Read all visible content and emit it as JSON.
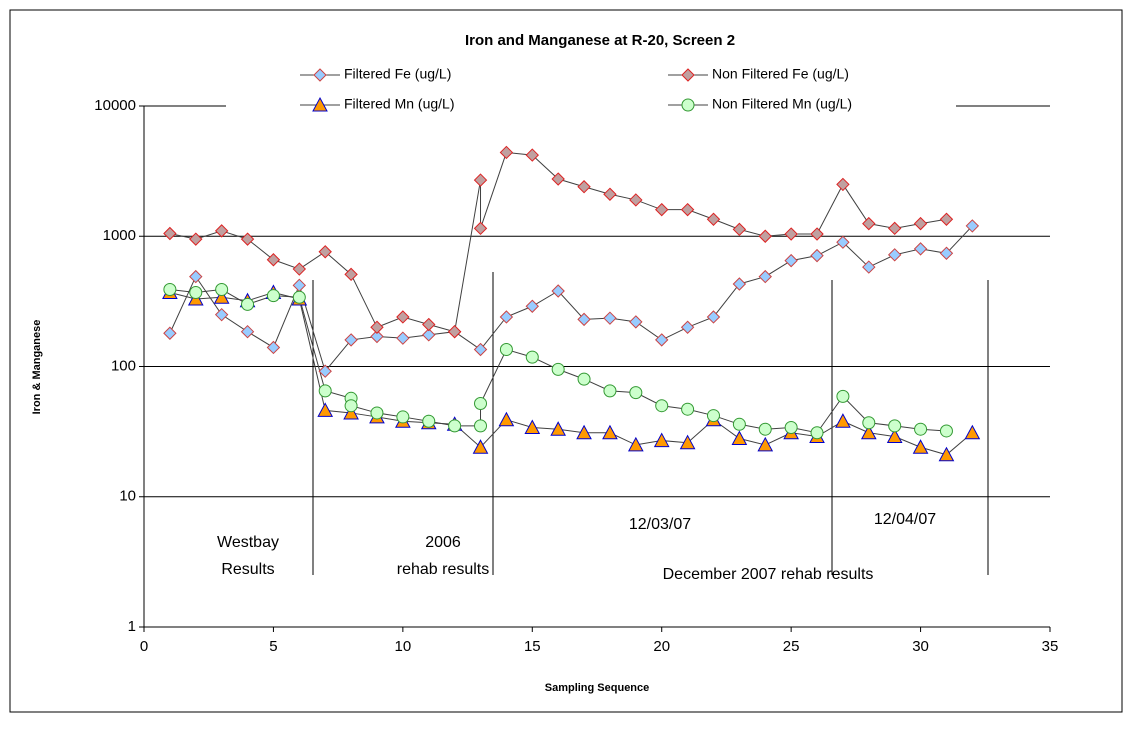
{
  "chart_data": {
    "type": "scatter",
    "title": "Iron and Manganese at R-20, Screen 2",
    "x_label": "Sampling Sequence",
    "y_label": "Iron & Manganese",
    "y_scale": "log",
    "xlim": [
      0,
      35
    ],
    "xticks": [
      0,
      5,
      10,
      15,
      20,
      25,
      30,
      35
    ],
    "ylim": [
      1,
      10000
    ],
    "yticks": [
      1,
      10,
      100,
      1000,
      10000
    ],
    "grid": true,
    "line_color": "#404040",
    "series": [
      {
        "name": "Filtered  Fe (ug/L)",
        "marker": "diamond",
        "color": "#99ccff",
        "edge_color": "#cc4444",
        "x": [
          1,
          2,
          3,
          4,
          5,
          6,
          7,
          8,
          9,
          10,
          11,
          12,
          13,
          14,
          15,
          16,
          17,
          18,
          19,
          20,
          21,
          22,
          23,
          24,
          25,
          26,
          27,
          28,
          29,
          30,
          31,
          32
        ],
        "values": [
          180,
          490,
          250,
          185,
          140,
          420,
          92,
          160,
          170,
          165,
          175,
          185,
          135,
          240,
          290,
          380,
          230,
          235,
          220,
          160,
          200,
          240,
          430,
          490,
          650,
          710,
          900,
          580,
          720,
          800,
          740,
          1200
        ]
      },
      {
        "name": "Non Filtered Fe (ug/L)",
        "marker": "diamond",
        "color": "#c0a0a0",
        "edge_color": "#dd2222",
        "x": [
          1,
          2,
          3,
          4,
          5,
          6,
          7,
          8,
          9,
          10,
          11,
          12,
          13,
          13,
          14,
          15,
          16,
          17,
          18,
          19,
          20,
          21,
          22,
          23,
          24,
          25,
          26,
          27,
          28,
          29,
          30,
          31
        ],
        "values": [
          1050,
          950,
          1100,
          950,
          660,
          560,
          760,
          510,
          200,
          240,
          210,
          185,
          2700,
          1150,
          4400,
          4200,
          2750,
          2400,
          2100,
          1900,
          1600,
          1600,
          1350,
          1130,
          1000,
          1040,
          1040,
          2500,
          1250,
          1150,
          1250,
          1350
        ]
      },
      {
        "name": "Filtered  Mn (ug/L)",
        "marker": "triangle",
        "color": "#ff9900",
        "edge_color": "#0000cc",
        "x": [
          1,
          2,
          3,
          4,
          5,
          6,
          7,
          8,
          9,
          10,
          11,
          12,
          13,
          14,
          15,
          16,
          17,
          18,
          19,
          20,
          21,
          22,
          23,
          24,
          25,
          26,
          27,
          28,
          29,
          30,
          31,
          32
        ],
        "values": [
          370,
          330,
          340,
          320,
          370,
          330,
          46,
          44,
          41,
          38,
          37,
          36,
          24,
          39,
          34,
          33,
          31,
          31,
          25,
          27,
          26,
          39,
          28,
          25,
          31,
          29,
          38,
          31,
          29,
          24,
          21,
          31
        ]
      },
      {
        "name": "Non Filtered Mn (ug/L)",
        "marker": "circle",
        "color": "#ccffcc",
        "edge_color": "#339933",
        "x": [
          1,
          2,
          3,
          4,
          5,
          6,
          7,
          8,
          8,
          9,
          10,
          11,
          12,
          13,
          13,
          14,
          15,
          16,
          17,
          18,
          19,
          20,
          21,
          22,
          23,
          24,
          25,
          26,
          27,
          28,
          29,
          30,
          31
        ],
        "values": [
          390,
          370,
          390,
          300,
          350,
          340,
          65,
          57,
          50,
          44,
          41,
          38,
          35,
          35,
          52,
          135,
          118,
          95,
          80,
          65,
          63,
          50,
          47,
          42,
          36,
          33,
          34,
          31,
          59,
          37,
          35,
          33,
          32
        ]
      }
    ],
    "annotations": [
      "Westbay",
      "Results",
      "2006",
      "rehab results",
      "12/03/07",
      "December 2007 rehab results",
      "12/04/07"
    ]
  }
}
